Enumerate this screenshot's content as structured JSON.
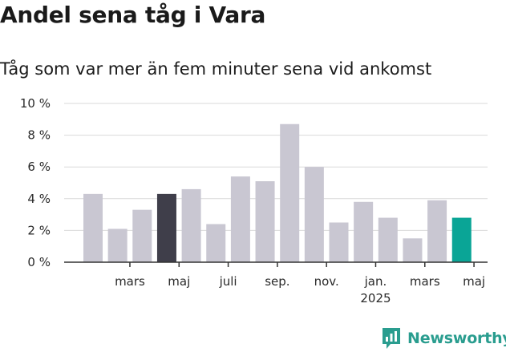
{
  "title": "Andel sena tåg i Vara",
  "subtitle": "Tåg som var mer än fem minuter sena vid ankomst",
  "brand": "Newsworthy",
  "colors": {
    "bar_default": "#c9c7d2",
    "bar_highlight_dark": "#3f3e4a",
    "bar_highlight_teal": "#0aa596",
    "gridline": "#d9d9d9",
    "axis": "#333333",
    "brand": "#2a9d8f"
  },
  "chart_data": {
    "type": "bar",
    "title": "Andel sena tåg i Vara",
    "subtitle": "Tåg som var mer än fem minuter sena vid ankomst",
    "xlabel": "",
    "ylabel": "",
    "ylim": [
      0,
      10
    ],
    "y_ticks": [
      "0 %",
      "2 %",
      "4 %",
      "6 %",
      "8 %",
      "10 %"
    ],
    "y_tick_values": [
      0,
      2,
      4,
      6,
      8,
      10
    ],
    "grid": true,
    "x_tick_labels": [
      {
        "bar_index": 1.5,
        "label": "mars"
      },
      {
        "bar_index": 3.5,
        "label": "maj"
      },
      {
        "bar_index": 5.5,
        "label": "juli"
      },
      {
        "bar_index": 7.5,
        "label": "sep."
      },
      {
        "bar_index": 9.5,
        "label": "nov."
      },
      {
        "bar_index": 11.5,
        "label": "jan.",
        "sublabel": "2025"
      },
      {
        "bar_index": 13.5,
        "label": "mars"
      },
      {
        "bar_index": 15.5,
        "label": "maj"
      }
    ],
    "values": [
      4.3,
      2.1,
      3.3,
      4.3,
      4.6,
      2.4,
      5.4,
      5.1,
      8.7,
      6.0,
      2.5,
      3.8,
      2.8,
      1.5,
      3.9,
      2.8
    ],
    "highlight": {
      "3": "dark",
      "15": "teal"
    }
  }
}
